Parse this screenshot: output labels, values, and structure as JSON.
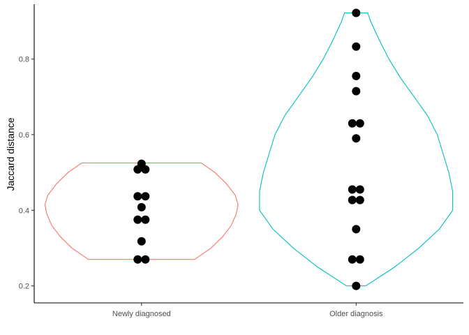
{
  "chart_data": {
    "type": "scatter",
    "subtype": "violin-with-dots",
    "title": "",
    "xlabel": "",
    "ylabel": "Jaccard distance",
    "ylim": [
      0.155,
      0.945
    ],
    "yticks": [
      0.2,
      0.4,
      0.6,
      0.8
    ],
    "ytick_labels": [
      "0.2",
      "0.4",
      "0.6",
      "0.8"
    ],
    "grid": false,
    "legend": "none",
    "categories": [
      "Newly diagnosed",
      "Older diagnosis"
    ],
    "groups": [
      {
        "category": "Newly diagnosed",
        "color": "#F8766D",
        "range": [
          0.27,
          0.525
        ],
        "density": [
          [
            0.27,
            0.55
          ],
          [
            0.3,
            0.72
          ],
          [
            0.33,
            0.84
          ],
          [
            0.36,
            0.93
          ],
          [
            0.39,
            0.98
          ],
          [
            0.415,
            1.0
          ],
          [
            0.44,
            0.97
          ],
          [
            0.47,
            0.88
          ],
          [
            0.5,
            0.76
          ],
          [
            0.525,
            0.62
          ]
        ],
        "points": [
          {
            "y": 0.523,
            "n": 1
          },
          {
            "y": 0.508,
            "n": 2
          },
          {
            "y": 0.437,
            "n": 2
          },
          {
            "y": 0.408,
            "n": 1
          },
          {
            "y": 0.375,
            "n": 2
          },
          {
            "y": 0.318,
            "n": 1
          },
          {
            "y": 0.27,
            "n": 2
          }
        ]
      },
      {
        "category": "Older diagnosis",
        "color": "#00BFC4",
        "range": [
          0.2,
          0.922
        ],
        "density": [
          [
            0.2,
            0.1
          ],
          [
            0.25,
            0.4
          ],
          [
            0.3,
            0.65
          ],
          [
            0.35,
            0.86
          ],
          [
            0.4,
            1.0
          ],
          [
            0.45,
            1.0
          ],
          [
            0.5,
            0.96
          ],
          [
            0.55,
            0.9
          ],
          [
            0.6,
            0.84
          ],
          [
            0.65,
            0.74
          ],
          [
            0.7,
            0.6
          ],
          [
            0.75,
            0.46
          ],
          [
            0.8,
            0.34
          ],
          [
            0.85,
            0.24
          ],
          [
            0.9,
            0.15
          ],
          [
            0.922,
            0.12
          ]
        ],
        "points": [
          {
            "y": 0.922,
            "n": 1
          },
          {
            "y": 0.833,
            "n": 1
          },
          {
            "y": 0.755,
            "n": 1
          },
          {
            "y": 0.715,
            "n": 1
          },
          {
            "y": 0.63,
            "n": 2
          },
          {
            "y": 0.59,
            "n": 1
          },
          {
            "y": 0.455,
            "n": 2
          },
          {
            "y": 0.427,
            "n": 2
          },
          {
            "y": 0.35,
            "n": 1
          },
          {
            "y": 0.27,
            "n": 2
          },
          {
            "y": 0.2,
            "n": 1
          }
        ]
      }
    ]
  }
}
